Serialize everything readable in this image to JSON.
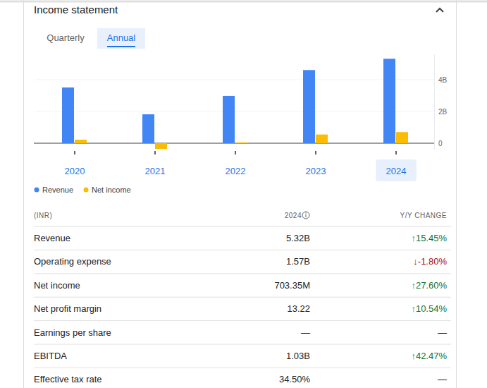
{
  "header": {
    "title": "Income statement"
  },
  "tabs": [
    "Quarterly",
    "Annual"
  ],
  "chart_data": {
    "type": "bar",
    "categories": [
      "2020",
      "2021",
      "2022",
      "2023",
      "2024"
    ],
    "series": [
      {
        "name": "Revenue",
        "color": "#4285f4",
        "values": [
          3.51,
          1.82,
          2.98,
          4.61,
          5.32
        ]
      },
      {
        "name": "Net income",
        "color": "#fbbc04",
        "values": [
          0.22,
          -0.36,
          0.05,
          0.55,
          0.7
        ]
      }
    ],
    "ylim": [
      -0.4,
      5.6
    ],
    "yticks": [
      0,
      {
        "value": 2,
        "label": "2B"
      },
      {
        "value": 4,
        "label": "4B"
      }
    ],
    "grid": true
  },
  "table": {
    "columns": [
      "(INR)",
      "2024",
      "Y/Y CHANGE"
    ],
    "rows": [
      [
        "Revenue",
        "5.32B",
        "↑15.45%"
      ],
      [
        "Operating expense",
        "1.57B",
        "↓-1.80%"
      ],
      [
        "Net income",
        "703.35M",
        "↑27.60%"
      ],
      [
        "Net profit margin",
        "13.22",
        "↑10.54%"
      ],
      [
        "Earnings per share",
        "—",
        "—"
      ],
      [
        "EBITDA",
        "1.03B",
        "↑42.47%"
      ],
      [
        "Effective tax rate",
        "34.50%",
        "—"
      ]
    ]
  }
}
